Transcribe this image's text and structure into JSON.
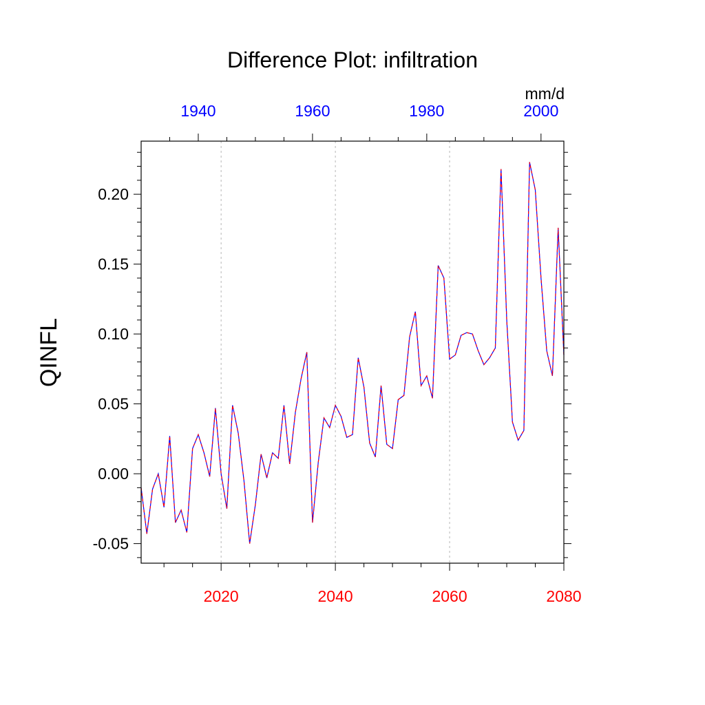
{
  "chart_data": {
    "type": "line",
    "title": "Difference Plot: infiltration",
    "ylabel": "QINFL",
    "units": "mm/d",
    "x_bottom": {
      "range": [
        2006,
        2080
      ],
      "major_ticks": [
        2020,
        2040,
        2060,
        2080
      ],
      "labels": [
        "2020",
        "2040",
        "2060",
        "2080"
      ],
      "color": "#ff0000"
    },
    "x_top": {
      "range": [
        1930,
        2004
      ],
      "major_ticks": [
        1940,
        1960,
        1980,
        2000
      ],
      "labels": [
        "1940",
        "1960",
        "1980",
        "2000"
      ],
      "color": "#0000ff"
    },
    "y": {
      "range": [
        -0.064,
        0.238
      ],
      "ticks": [
        -0.05,
        0.0,
        0.05,
        0.1,
        0.15,
        0.2
      ],
      "labels": [
        "-0.05",
        "0.00",
        "0.05",
        "0.10",
        "0.15",
        "0.20"
      ]
    },
    "grid": {
      "vertical_dashed_at": [
        2020,
        2040,
        2060
      ]
    },
    "series": [
      {
        "line_colors": [
          "#0000ff",
          "#ff0000"
        ],
        "style": "dashed",
        "x": [
          2006,
          2007,
          2008,
          2009,
          2010,
          2011,
          2012,
          2013,
          2014,
          2015,
          2016,
          2017,
          2018,
          2019,
          2020,
          2021,
          2022,
          2023,
          2024,
          2025,
          2026,
          2027,
          2028,
          2029,
          2030,
          2031,
          2032,
          2033,
          2034,
          2035,
          2036,
          2037,
          2038,
          2039,
          2040,
          2041,
          2042,
          2043,
          2044,
          2045,
          2046,
          2047,
          2048,
          2049,
          2050,
          2051,
          2052,
          2053,
          2054,
          2055,
          2056,
          2057,
          2058,
          2059,
          2060,
          2061,
          2062,
          2063,
          2064,
          2065,
          2066,
          2067,
          2068,
          2069,
          2070,
          2071,
          2072,
          2073,
          2074,
          2075,
          2076,
          2077,
          2078,
          2079,
          2080
        ],
        "values": [
          -0.01,
          -0.043,
          -0.011,
          0.0,
          -0.024,
          0.027,
          -0.035,
          -0.026,
          -0.042,
          0.018,
          0.028,
          0.015,
          -0.002,
          0.047,
          0.0,
          -0.025,
          0.049,
          0.029,
          -0.005,
          -0.05,
          -0.022,
          0.014,
          -0.003,
          0.015,
          0.011,
          0.049,
          0.007,
          0.044,
          0.068,
          0.087,
          -0.035,
          0.008,
          0.04,
          0.033,
          0.049,
          0.041,
          0.026,
          0.028,
          0.083,
          0.062,
          0.022,
          0.012,
          0.063,
          0.021,
          0.018,
          0.053,
          0.056,
          0.098,
          0.116,
          0.063,
          0.07,
          0.054,
          0.149,
          0.14,
          0.082,
          0.085,
          0.099,
          0.101,
          0.1,
          0.088,
          0.078,
          0.083,
          0.09,
          0.218,
          0.11,
          0.037,
          0.024,
          0.031,
          0.223,
          0.203,
          0.14,
          0.088,
          0.07,
          0.176,
          0.085
        ]
      }
    ]
  }
}
